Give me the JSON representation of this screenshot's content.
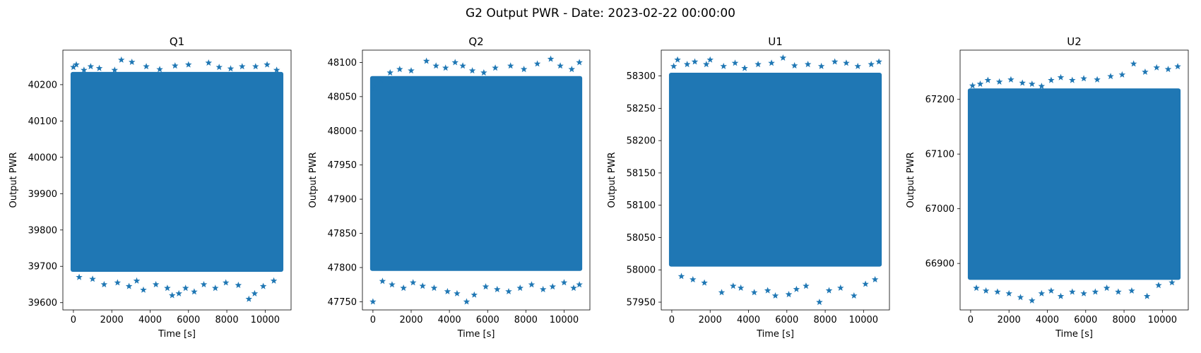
{
  "suptitle": "G2 Output PWR - Date: 2023-02-22 00:00:00",
  "marker_color": "#1f77b4",
  "chart_data": [
    {
      "type": "scatter",
      "title": "Q1",
      "xlabel": "Time [s]",
      "ylabel": "Output PWR",
      "xlim": [
        -550,
        11350
      ],
      "ylim": [
        39580,
        40295
      ],
      "xticks": [
        0,
        2000,
        4000,
        6000,
        8000,
        10000
      ],
      "yticks": [
        39600,
        39700,
        39800,
        39900,
        40000,
        40100,
        40200
      ],
      "x_range": [
        0,
        10800
      ],
      "band": [
        39685,
        40235
      ],
      "outliers_top": [
        [
          0,
          40248
        ],
        [
          150,
          40255
        ],
        [
          550,
          40240
        ],
        [
          900,
          40250
        ],
        [
          1350,
          40245
        ],
        [
          2150,
          40240
        ],
        [
          2500,
          40268
        ],
        [
          3050,
          40262
        ],
        [
          3800,
          40250
        ],
        [
          4500,
          40242
        ],
        [
          5300,
          40252
        ],
        [
          6000,
          40255
        ],
        [
          7050,
          40260
        ],
        [
          7600,
          40248
        ],
        [
          8200,
          40244
        ],
        [
          8800,
          40250
        ],
        [
          9500,
          40250
        ],
        [
          10100,
          40255
        ],
        [
          10600,
          40240
        ]
      ],
      "outliers_bottom": [
        [
          300,
          39670
        ],
        [
          1000,
          39665
        ],
        [
          1600,
          39650
        ],
        [
          2300,
          39655
        ],
        [
          2900,
          39645
        ],
        [
          3300,
          39660
        ],
        [
          3650,
          39635
        ],
        [
          4300,
          39650
        ],
        [
          4900,
          39640
        ],
        [
          5150,
          39620
        ],
        [
          5500,
          39625
        ],
        [
          5850,
          39640
        ],
        [
          6300,
          39630
        ],
        [
          6800,
          39650
        ],
        [
          7400,
          39640
        ],
        [
          7950,
          39655
        ],
        [
          8600,
          39648
        ],
        [
          9150,
          39610
        ],
        [
          9450,
          39625
        ],
        [
          9900,
          39645
        ],
        [
          10450,
          39660
        ]
      ]
    },
    {
      "type": "scatter",
      "title": "Q2",
      "xlabel": "Time [s]",
      "ylabel": "Output PWR",
      "xlim": [
        -550,
        11350
      ],
      "ylim": [
        47738,
        48118
      ],
      "xticks": [
        0,
        2000,
        4000,
        6000,
        8000,
        10000
      ],
      "yticks": [
        47750,
        47800,
        47850,
        47900,
        47950,
        48000,
        48050,
        48100
      ],
      "x_range": [
        0,
        10800
      ],
      "band": [
        47795,
        48080
      ],
      "outliers_top": [
        [
          100,
          48062
        ],
        [
          400,
          48075
        ],
        [
          900,
          48085
        ],
        [
          1400,
          48090
        ],
        [
          2000,
          48088
        ],
        [
          2800,
          48102
        ],
        [
          3300,
          48095
        ],
        [
          3800,
          48092
        ],
        [
          4300,
          48100
        ],
        [
          4700,
          48095
        ],
        [
          5200,
          48088
        ],
        [
          5800,
          48085
        ],
        [
          6400,
          48092
        ],
        [
          7200,
          48095
        ],
        [
          7900,
          48090
        ],
        [
          8600,
          48098
        ],
        [
          9300,
          48105
        ],
        [
          9800,
          48095
        ],
        [
          10400,
          48090
        ],
        [
          10800,
          48100
        ]
      ],
      "outliers_bottom": [
        [
          0,
          47750
        ],
        [
          500,
          47780
        ],
        [
          1000,
          47775
        ],
        [
          1600,
          47770
        ],
        [
          2100,
          47778
        ],
        [
          2600,
          47773
        ],
        [
          3200,
          47770
        ],
        [
          3900,
          47765
        ],
        [
          4400,
          47762
        ],
        [
          4900,
          47750
        ],
        [
          5300,
          47760
        ],
        [
          5900,
          47772
        ],
        [
          6500,
          47768
        ],
        [
          7100,
          47765
        ],
        [
          7700,
          47770
        ],
        [
          8300,
          47775
        ],
        [
          8900,
          47768
        ],
        [
          9400,
          47772
        ],
        [
          10000,
          47778
        ],
        [
          10500,
          47770
        ],
        [
          10800,
          47775
        ]
      ]
    },
    {
      "type": "scatter",
      "title": "U1",
      "xlabel": "Time [s]",
      "ylabel": "Output PWR",
      "xlim": [
        -550,
        11350
      ],
      "ylim": [
        57938,
        58340
      ],
      "xticks": [
        0,
        2000,
        4000,
        6000,
        8000,
        10000
      ],
      "yticks": [
        57950,
        58000,
        58050,
        58100,
        58150,
        58200,
        58250,
        58300
      ],
      "x_range": [
        0,
        10800
      ],
      "band": [
        58005,
        58305
      ],
      "outliers_top": [
        [
          100,
          58315
        ],
        [
          300,
          58325
        ],
        [
          800,
          58318
        ],
        [
          1200,
          58322
        ],
        [
          1800,
          58318
        ],
        [
          2000,
          58325
        ],
        [
          2700,
          58315
        ],
        [
          3300,
          58320
        ],
        [
          3800,
          58312
        ],
        [
          4500,
          58318
        ],
        [
          5200,
          58320
        ],
        [
          5800,
          58328
        ],
        [
          6400,
          58316
        ],
        [
          7100,
          58318
        ],
        [
          7800,
          58315
        ],
        [
          8500,
          58322
        ],
        [
          9100,
          58320
        ],
        [
          9700,
          58315
        ],
        [
          10400,
          58318
        ],
        [
          10800,
          58322
        ]
      ],
      "outliers_bottom": [
        [
          500,
          57990
        ],
        [
          1100,
          57985
        ],
        [
          1700,
          57980
        ],
        [
          2600,
          57965
        ],
        [
          3200,
          57975
        ],
        [
          3600,
          57972
        ],
        [
          4300,
          57965
        ],
        [
          5000,
          57968
        ],
        [
          5400,
          57960
        ],
        [
          6100,
          57962
        ],
        [
          6500,
          57970
        ],
        [
          7000,
          57975
        ],
        [
          7700,
          57950
        ],
        [
          8200,
          57968
        ],
        [
          8800,
          57972
        ],
        [
          9500,
          57960
        ],
        [
          10100,
          57978
        ],
        [
          10600,
          57985
        ]
      ]
    },
    {
      "type": "scatter",
      "title": "U2",
      "xlabel": "Time [s]",
      "ylabel": "Output PWR",
      "xlim": [
        -550,
        11350
      ],
      "ylim": [
        66815,
        67290
      ],
      "xticks": [
        0,
        2000,
        4000,
        6000,
        8000,
        10000
      ],
      "yticks": [
        66900,
        67000,
        67100,
        67200
      ],
      "x_range": [
        0,
        10800
      ],
      "band": [
        66870,
        67220
      ],
      "outliers_top": [
        [
          100,
          67225
        ],
        [
          500,
          67228
        ],
        [
          900,
          67235
        ],
        [
          1500,
          67232
        ],
        [
          2100,
          67236
        ],
        [
          2700,
          67230
        ],
        [
          3200,
          67228
        ],
        [
          3700,
          67224
        ],
        [
          4200,
          67235
        ],
        [
          4700,
          67240
        ],
        [
          5300,
          67235
        ],
        [
          5900,
          67238
        ],
        [
          6600,
          67236
        ],
        [
          7300,
          67242
        ],
        [
          7900,
          67245
        ],
        [
          8500,
          67265
        ],
        [
          9100,
          67250
        ],
        [
          9700,
          67258
        ],
        [
          10300,
          67255
        ],
        [
          10800,
          67260
        ]
      ],
      "outliers_bottom": [
        [
          300,
          66855
        ],
        [
          800,
          66850
        ],
        [
          1400,
          66848
        ],
        [
          2000,
          66845
        ],
        [
          2600,
          66838
        ],
        [
          3200,
          66832
        ],
        [
          3700,
          66845
        ],
        [
          4200,
          66850
        ],
        [
          4700,
          66840
        ],
        [
          5300,
          66848
        ],
        [
          5900,
          66845
        ],
        [
          6500,
          66848
        ],
        [
          7100,
          66855
        ],
        [
          7700,
          66848
        ],
        [
          8400,
          66850
        ],
        [
          9200,
          66840
        ],
        [
          9800,
          66860
        ],
        [
          10500,
          66865
        ]
      ]
    }
  ]
}
